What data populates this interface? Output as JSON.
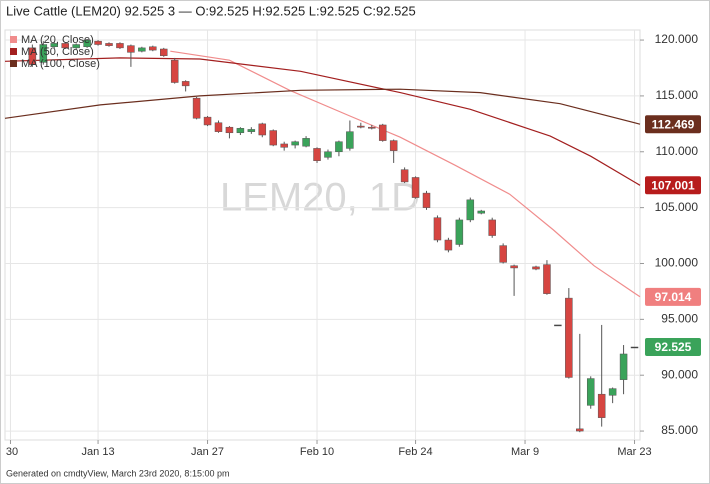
{
  "chart_data": {
    "type": "candlestick",
    "title": "Live Cattle (LEM20) 92.525 3 — O:92.525 H:92.525 L:92.525 C:92.525",
    "watermark": "LEM20, 1D",
    "footer": "Generated on cmdtyView, March 23rd 2020, 8:15:00 pm",
    "xlim": [
      -0.5,
      57.5
    ],
    "xticks": [
      {
        "value": 0,
        "label": "30"
      },
      {
        "value": 8,
        "label": "Jan 13"
      },
      {
        "value": 18,
        "label": "Jan 27"
      },
      {
        "value": 28,
        "label": "Feb 10"
      },
      {
        "value": 37,
        "label": "Feb 24"
      },
      {
        "value": 47,
        "label": "Mar 9"
      },
      {
        "value": 57,
        "label": "Mar 23"
      }
    ],
    "ylim": [
      84.2,
      120.9
    ],
    "yticks": [
      {
        "value": 85,
        "label": "85.000"
      },
      {
        "value": 90,
        "label": "90.000"
      },
      {
        "value": 95,
        "label": "95.000"
      },
      {
        "value": 100,
        "label": "100.000"
      },
      {
        "value": 105,
        "label": "105.000"
      },
      {
        "value": 110,
        "label": "110.000"
      },
      {
        "value": 115,
        "label": "115.000"
      },
      {
        "value": 120,
        "label": "120.000"
      }
    ],
    "grid": true,
    "up_color": "#3aa35a",
    "down_color": "#d64541",
    "x": [
      2,
      3,
      4,
      5,
      6,
      7,
      8,
      9,
      10,
      11,
      12,
      13,
      14,
      15,
      16,
      17,
      18,
      19,
      20,
      21,
      22,
      23,
      24,
      25,
      26,
      27,
      28,
      29,
      30,
      31,
      32,
      33,
      34,
      35,
      36,
      37,
      38,
      39,
      40,
      41,
      42,
      43,
      44,
      45,
      46,
      48,
      49,
      50,
      51,
      52,
      53,
      54,
      55,
      56,
      57
    ],
    "open": [
      119.3,
      118.0,
      119.4,
      119.7,
      119.3,
      119.4,
      119.9,
      119.7,
      119.7,
      119.5,
      119.0,
      119.4,
      119.2,
      118.2,
      116.3,
      114.8,
      113.1,
      112.6,
      112.2,
      111.7,
      111.8,
      112.5,
      111.9,
      110.7,
      110.6,
      110.5,
      110.3,
      109.5,
      110.0,
      110.3,
      112.3,
      112.2,
      112.4,
      111.0,
      108.4,
      107.7,
      106.3,
      104.1,
      102.1,
      101.7,
      103.9,
      104.5,
      103.9,
      101.6,
      99.8,
      99.7,
      99.9,
      94.5,
      96.9,
      85.2,
      87.3,
      88.3,
      88.2,
      89.6,
      92.525
    ],
    "high": [
      119.6,
      119.9,
      119.8,
      119.8,
      119.7,
      120.1,
      120.0,
      119.8,
      119.8,
      119.6,
      119.4,
      119.5,
      119.3,
      118.4,
      116.4,
      114.9,
      113.2,
      112.8,
      112.3,
      112.2,
      112.2,
      112.6,
      112.0,
      110.9,
      111.0,
      111.4,
      110.4,
      110.2,
      111.0,
      112.8,
      112.6,
      112.4,
      112.5,
      111.1,
      108.6,
      107.8,
      106.5,
      104.3,
      102.3,
      104.1,
      105.9,
      104.8,
      104.1,
      101.8,
      99.9,
      99.8,
      100.3,
      94.5,
      97.8,
      93.7,
      89.9,
      94.5,
      88.9,
      92.7,
      92.525
    ],
    "low": [
      117.6,
      117.8,
      119.3,
      119.2,
      119.2,
      119.3,
      119.5,
      119.4,
      119.2,
      117.6,
      118.9,
      119.0,
      118.5,
      116.1,
      115.4,
      112.9,
      112.3,
      111.7,
      111.2,
      111.5,
      111.6,
      111.3,
      110.5,
      110.1,
      110.3,
      110.4,
      109.0,
      109.3,
      109.6,
      110.1,
      112.1,
      112.0,
      110.9,
      109.0,
      107.2,
      105.8,
      104.8,
      101.9,
      101.0,
      101.5,
      103.7,
      104.4,
      102.3,
      100.0,
      97.1,
      99.4,
      97.2,
      94.5,
      89.7,
      84.9,
      87.0,
      85.4,
      87.5,
      88.3,
      92.525
    ],
    "close": [
      117.8,
      119.6,
      119.7,
      119.3,
      119.6,
      120.0,
      119.6,
      119.5,
      119.3,
      118.9,
      119.3,
      119.1,
      118.6,
      116.2,
      115.9,
      113.0,
      112.4,
      111.8,
      111.7,
      112.1,
      112.0,
      111.5,
      110.6,
      110.4,
      110.9,
      111.2,
      109.2,
      110.0,
      110.9,
      111.8,
      112.2,
      112.1,
      111.0,
      110.1,
      107.3,
      105.9,
      105.0,
      102.1,
      101.2,
      103.9,
      105.7,
      104.7,
      102.5,
      100.1,
      99.6,
      99.5,
      97.3,
      94.5,
      89.8,
      85.0,
      89.7,
      86.2,
      88.8,
      91.9,
      92.525
    ],
    "series": [
      {
        "name": "MA (20, Close)",
        "color": "#f08c8c",
        "label_color": "#f07f7f",
        "x": [
          14.6,
          20,
          25.5,
          31,
          35.6,
          40.6,
          45.6,
          49.6,
          53.3,
          57.5
        ],
        "values": [
          119.0,
          118.2,
          115.5,
          113.2,
          111.3,
          108.8,
          106.2,
          103.0,
          99.8,
          97.014
        ],
        "last_value": 97.014
      },
      {
        "name": "MA (50, Close)",
        "color": "#a31f1f",
        "label_color": "#b71c1c",
        "x": [
          -0.5,
          10,
          17.3,
          26.5,
          35.6,
          42,
          49.3,
          53,
          57.5
        ],
        "values": [
          118.1,
          118.4,
          118.3,
          117.2,
          115.3,
          113.8,
          111.4,
          109.6,
          107.001
        ],
        "last_value": 107.001
      },
      {
        "name": "MA (100, Close)",
        "color": "#6b2e1e",
        "label_color": "#6b2e1e",
        "x": [
          -0.5,
          8.2,
          17.3,
          26.5,
          35.6,
          42.9,
          50.2,
          57.5
        ],
        "values": [
          113.0,
          114.2,
          115.0,
          115.5,
          115.6,
          115.3,
          114.3,
          112.469
        ],
        "last_value": 112.469
      }
    ]
  }
}
